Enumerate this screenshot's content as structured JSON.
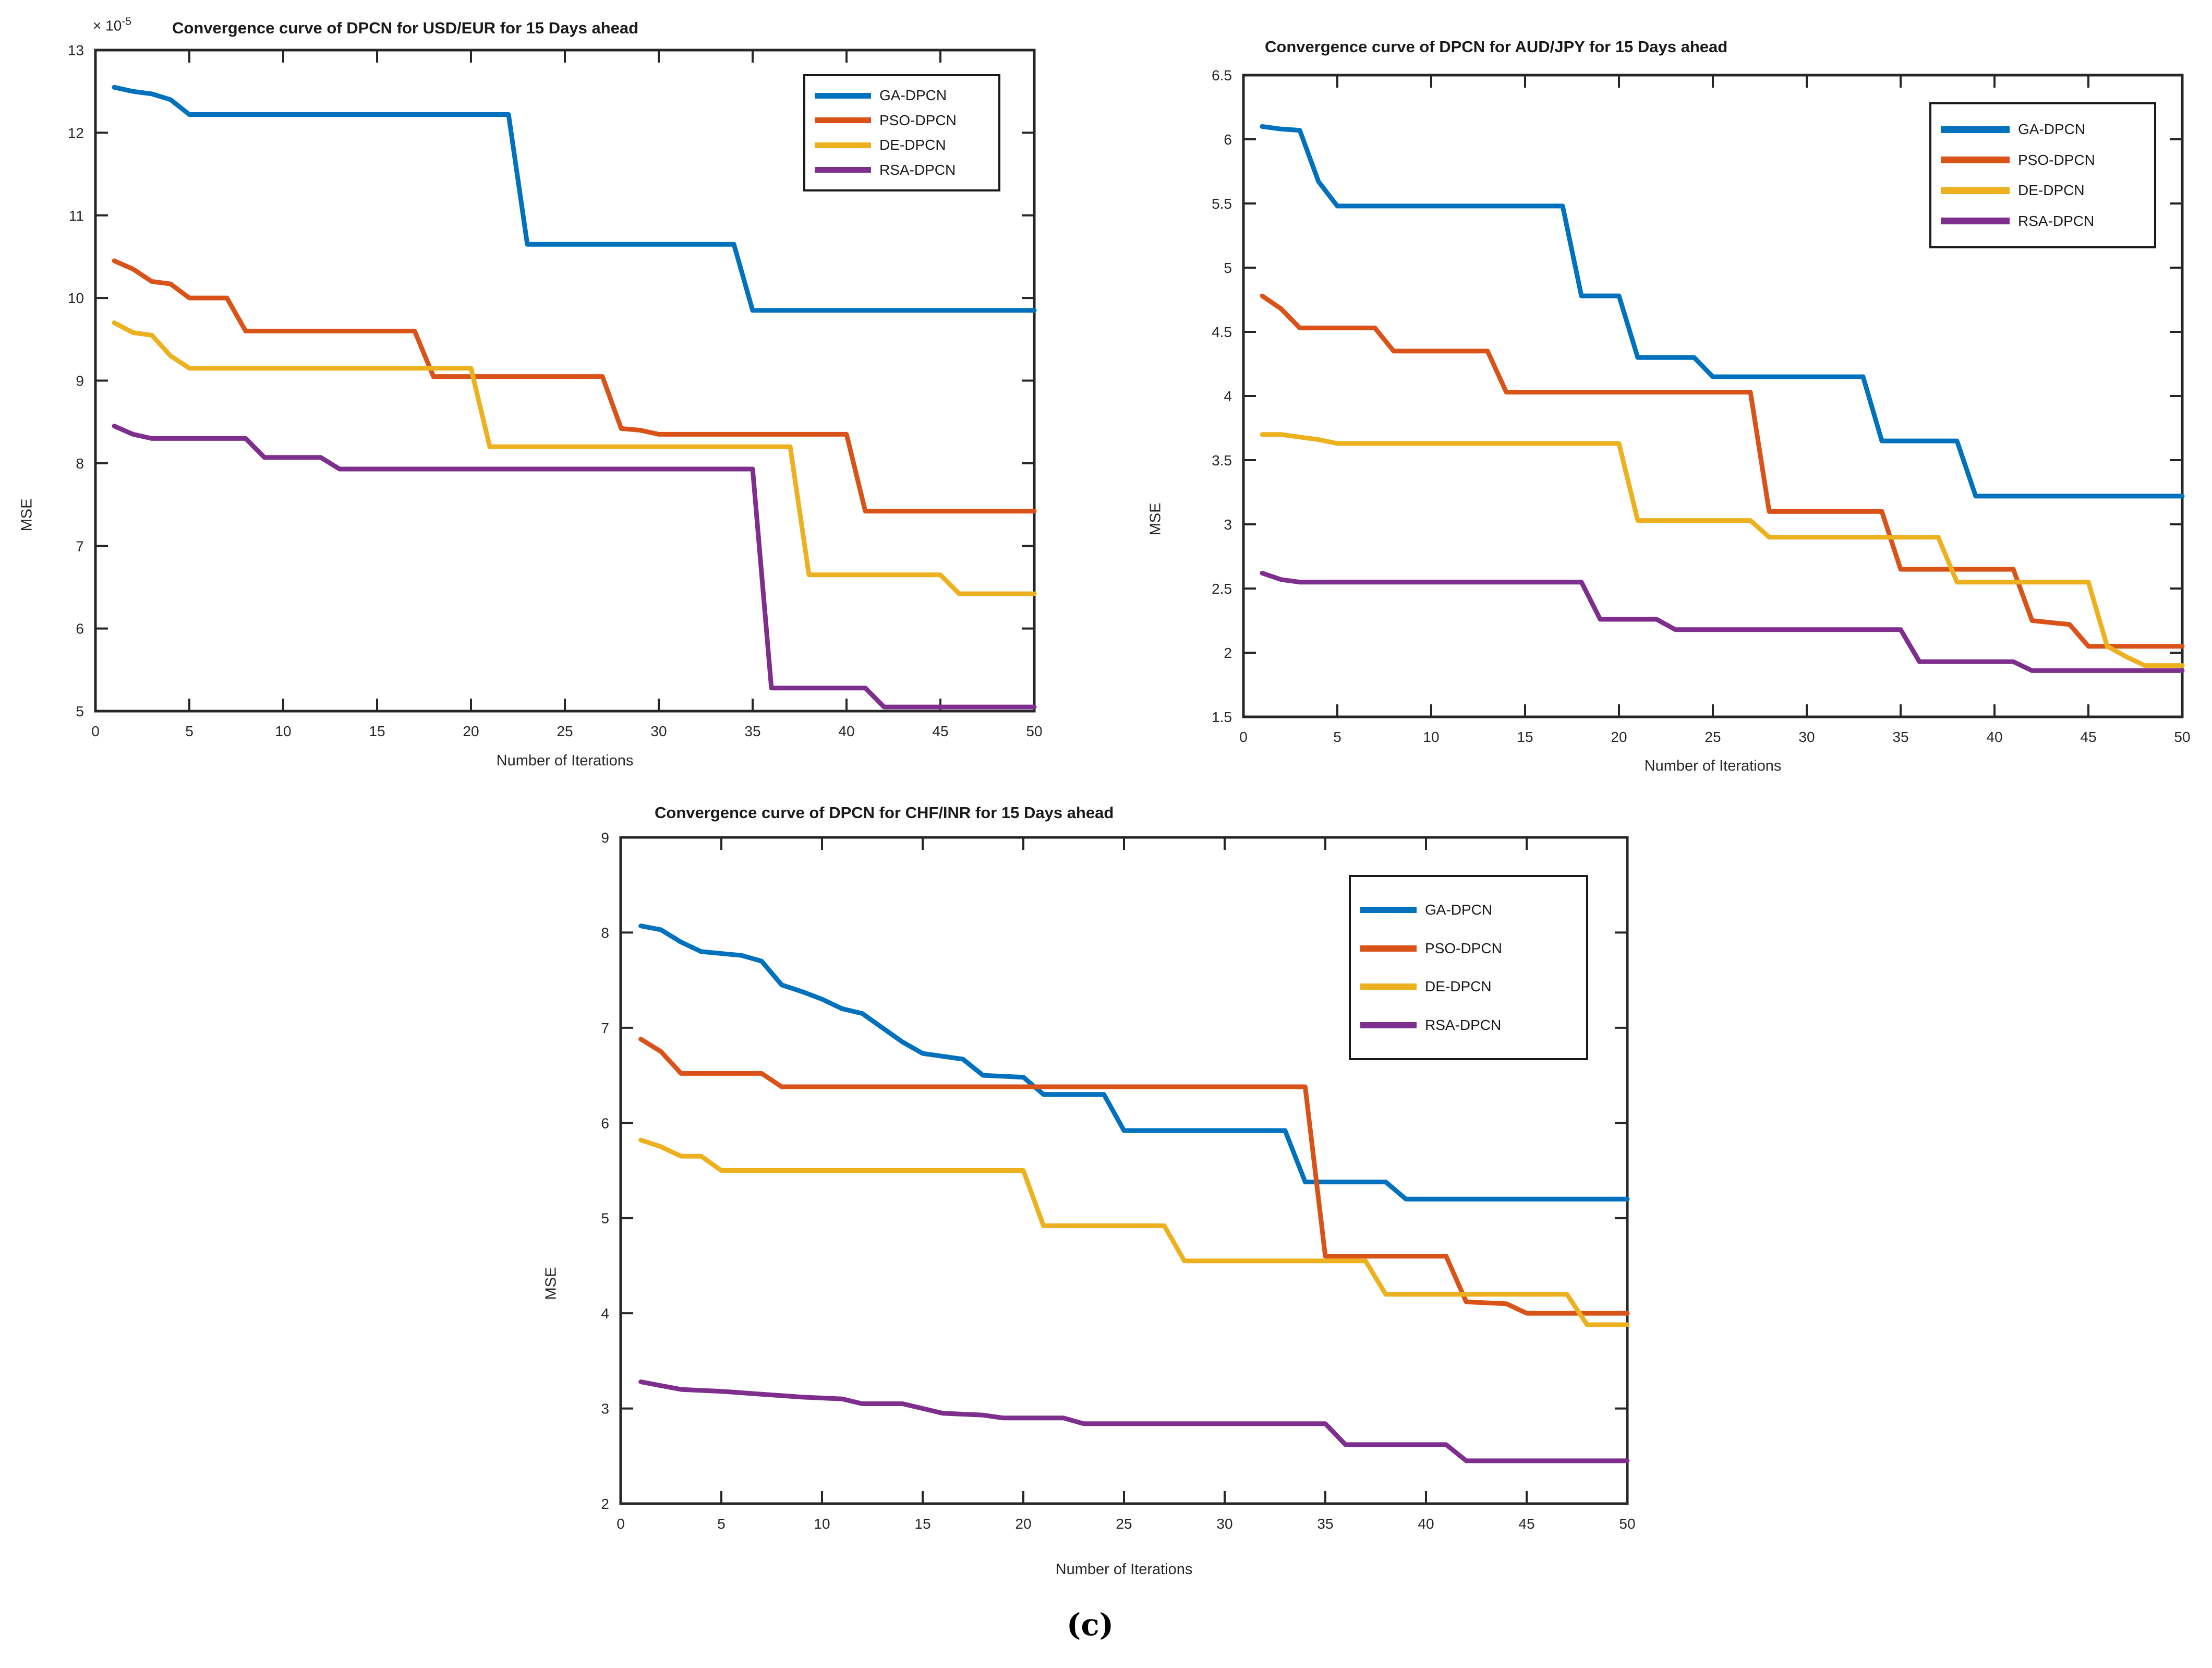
{
  "figure": {
    "caption": "(c)",
    "background": "#ffffff",
    "axis_color": "#262626"
  },
  "chart_data": [
    {
      "id": "usd-eur",
      "type": "line",
      "title": "Convergence curve of DPCN for USD/EUR for 15 Days ahead",
      "xlabel": "Number of Iterations",
      "ylabel": "MSE",
      "y_exponent_prefix": "× 10",
      "y_exponent": "-5",
      "xlim": [
        0,
        50
      ],
      "ylim": [
        5,
        13
      ],
      "xticks": [
        "0",
        "5",
        "10",
        "15",
        "20",
        "25",
        "30",
        "35",
        "40",
        "45",
        "50"
      ],
      "yticks": [
        "5",
        "6",
        "7",
        "8",
        "9",
        "10",
        "11",
        "12",
        "13"
      ],
      "grid": false,
      "legend_position": "top-right",
      "series": [
        {
          "name": "GA-DPCN",
          "color": "#0072BD",
          "points": [
            [
              1,
              12.55
            ],
            [
              2,
              12.5
            ],
            [
              3,
              12.47
            ],
            [
              4,
              12.4
            ],
            [
              5,
              12.22
            ],
            [
              22,
              12.22
            ],
            [
              23,
              10.65
            ],
            [
              34,
              10.65
            ],
            [
              35,
              9.85
            ],
            [
              50,
              9.85
            ]
          ]
        },
        {
          "name": "PSO-DPCN",
          "color": "#D95319",
          "points": [
            [
              1,
              10.45
            ],
            [
              2,
              10.35
            ],
            [
              3,
              10.2
            ],
            [
              4,
              10.17
            ],
            [
              5,
              10.0
            ],
            [
              7,
              10.0
            ],
            [
              8,
              9.6
            ],
            [
              17,
              9.6
            ],
            [
              18,
              9.05
            ],
            [
              27,
              9.05
            ],
            [
              28,
              8.42
            ],
            [
              29,
              8.4
            ],
            [
              30,
              8.35
            ],
            [
              40,
              8.35
            ],
            [
              41,
              7.42
            ],
            [
              50,
              7.42
            ]
          ]
        },
        {
          "name": "DE-DPCN",
          "color": "#EDB120",
          "points": [
            [
              1,
              9.7
            ],
            [
              2,
              9.58
            ],
            [
              3,
              9.55
            ],
            [
              4,
              9.3
            ],
            [
              5,
              9.15
            ],
            [
              20,
              9.15
            ],
            [
              21,
              8.2
            ],
            [
              37,
              8.2
            ],
            [
              38,
              6.65
            ],
            [
              45,
              6.65
            ],
            [
              46,
              6.42
            ],
            [
              50,
              6.42
            ]
          ]
        },
        {
          "name": "RSA-DPCN",
          "color": "#7E2F8E",
          "points": [
            [
              1,
              8.45
            ],
            [
              2,
              8.35
            ],
            [
              3,
              8.3
            ],
            [
              8,
              8.3
            ],
            [
              9,
              8.07
            ],
            [
              12,
              8.07
            ],
            [
              13,
              7.93
            ],
            [
              35,
              7.93
            ],
            [
              36,
              5.28
            ],
            [
              41,
              5.28
            ],
            [
              42,
              5.05
            ],
            [
              50,
              5.05
            ]
          ]
        }
      ]
    },
    {
      "id": "aud-jpy",
      "type": "line",
      "title": "Convergence curve of DPCN for AUD/JPY for 15 Days ahead",
      "xlabel": "Number of Iterations",
      "ylabel": "MSE",
      "xlim": [
        0,
        50
      ],
      "ylim": [
        1.5,
        6.5
      ],
      "xticks": [
        "0",
        "5",
        "10",
        "15",
        "20",
        "25",
        "30",
        "35",
        "40",
        "45",
        "50"
      ],
      "yticks": [
        "1.5",
        "2",
        "2.5",
        "3",
        "3.5",
        "4",
        "4.5",
        "5",
        "5.5",
        "6",
        "6.5"
      ],
      "grid": false,
      "legend_position": "top-right",
      "series": [
        {
          "name": "GA-DPCN",
          "color": "#0072BD",
          "points": [
            [
              1,
              6.1
            ],
            [
              2,
              6.08
            ],
            [
              3,
              6.07
            ],
            [
              4,
              5.67
            ],
            [
              5,
              5.48
            ],
            [
              17,
              5.48
            ],
            [
              18,
              4.78
            ],
            [
              20,
              4.78
            ],
            [
              21,
              4.3
            ],
            [
              24,
              4.3
            ],
            [
              25,
              4.15
            ],
            [
              33,
              4.15
            ],
            [
              34,
              3.65
            ],
            [
              38,
              3.65
            ],
            [
              39,
              3.22
            ],
            [
              50,
              3.22
            ]
          ]
        },
        {
          "name": "PSO-DPCN",
          "color": "#D95319",
          "points": [
            [
              1,
              4.78
            ],
            [
              2,
              4.68
            ],
            [
              3,
              4.53
            ],
            [
              7,
              4.53
            ],
            [
              8,
              4.35
            ],
            [
              13,
              4.35
            ],
            [
              14,
              4.03
            ],
            [
              27,
              4.03
            ],
            [
              28,
              3.1
            ],
            [
              34,
              3.1
            ],
            [
              35,
              2.65
            ],
            [
              41,
              2.65
            ],
            [
              42,
              2.25
            ],
            [
              44,
              2.22
            ],
            [
              45,
              2.05
            ],
            [
              50,
              2.05
            ]
          ]
        },
        {
          "name": "DE-DPCN",
          "color": "#EDB120",
          "points": [
            [
              1,
              3.7
            ],
            [
              2,
              3.7
            ],
            [
              3,
              3.68
            ],
            [
              4,
              3.66
            ],
            [
              5,
              3.63
            ],
            [
              20,
              3.63
            ],
            [
              21,
              3.03
            ],
            [
              27,
              3.03
            ],
            [
              28,
              2.9
            ],
            [
              37,
              2.9
            ],
            [
              38,
              2.55
            ],
            [
              45,
              2.55
            ],
            [
              46,
              2.05
            ],
            [
              47,
              1.97
            ],
            [
              48,
              1.9
            ],
            [
              50,
              1.9
            ]
          ]
        },
        {
          "name": "RSA-DPCN",
          "color": "#7E2F8E",
          "points": [
            [
              1,
              2.62
            ],
            [
              2,
              2.57
            ],
            [
              3,
              2.55
            ],
            [
              18,
              2.55
            ],
            [
              19,
              2.26
            ],
            [
              22,
              2.26
            ],
            [
              23,
              2.18
            ],
            [
              35,
              2.18
            ],
            [
              36,
              1.93
            ],
            [
              41,
              1.93
            ],
            [
              42,
              1.86
            ],
            [
              50,
              1.86
            ]
          ]
        }
      ]
    },
    {
      "id": "chf-inr",
      "type": "line",
      "title": "Convergence curve of DPCN for CHF/INR for 15 Days ahead",
      "xlabel": "Number of Iterations",
      "ylabel": "MSE",
      "xlim": [
        0,
        50
      ],
      "ylim": [
        2,
        9
      ],
      "xticks": [
        "0",
        "5",
        "10",
        "15",
        "20",
        "25",
        "30",
        "35",
        "40",
        "45",
        "50"
      ],
      "yticks": [
        "2",
        "3",
        "4",
        "5",
        "6",
        "7",
        "8",
        "9"
      ],
      "grid": false,
      "legend_position": "top-right",
      "series": [
        {
          "name": "GA-DPCN",
          "color": "#0072BD",
          "points": [
            [
              1,
              8.07
            ],
            [
              2,
              8.03
            ],
            [
              3,
              7.9
            ],
            [
              4,
              7.8
            ],
            [
              6,
              7.76
            ],
            [
              7,
              7.7
            ],
            [
              8,
              7.45
            ],
            [
              9,
              7.38
            ],
            [
              10,
              7.3
            ],
            [
              11,
              7.2
            ],
            [
              12,
              7.15
            ],
            [
              13,
              7.0
            ],
            [
              14,
              6.85
            ],
            [
              15,
              6.73
            ],
            [
              17,
              6.67
            ],
            [
              18,
              6.5
            ],
            [
              20,
              6.48
            ],
            [
              21,
              6.3
            ],
            [
              24,
              6.3
            ],
            [
              25,
              5.92
            ],
            [
              33,
              5.92
            ],
            [
              34,
              5.38
            ],
            [
              38,
              5.38
            ],
            [
              39,
              5.2
            ],
            [
              50,
              5.2
            ]
          ]
        },
        {
          "name": "PSO-DPCN",
          "color": "#D95319",
          "points": [
            [
              1,
              6.88
            ],
            [
              2,
              6.75
            ],
            [
              3,
              6.52
            ],
            [
              7,
              6.52
            ],
            [
              8,
              6.38
            ],
            [
              34,
              6.38
            ],
            [
              35,
              4.6
            ],
            [
              41,
              4.6
            ],
            [
              42,
              4.12
            ],
            [
              44,
              4.1
            ],
            [
              45,
              4.0
            ],
            [
              50,
              4.0
            ]
          ]
        },
        {
          "name": "DE-DPCN",
          "color": "#EDB120",
          "points": [
            [
              1,
              5.82
            ],
            [
              2,
              5.75
            ],
            [
              3,
              5.65
            ],
            [
              4,
              5.65
            ],
            [
              5,
              5.5
            ],
            [
              20,
              5.5
            ],
            [
              21,
              4.92
            ],
            [
              27,
              4.92
            ],
            [
              28,
              4.55
            ],
            [
              37,
              4.55
            ],
            [
              38,
              4.2
            ],
            [
              47,
              4.2
            ],
            [
              48,
              3.88
            ],
            [
              50,
              3.88
            ]
          ]
        },
        {
          "name": "RSA-DPCN",
          "color": "#7E2F8E",
          "points": [
            [
              1,
              3.28
            ],
            [
              2,
              3.24
            ],
            [
              3,
              3.2
            ],
            [
              5,
              3.18
            ],
            [
              7,
              3.15
            ],
            [
              9,
              3.12
            ],
            [
              11,
              3.1
            ],
            [
              12,
              3.05
            ],
            [
              14,
              3.05
            ],
            [
              15,
              3.0
            ],
            [
              16,
              2.95
            ],
            [
              18,
              2.93
            ],
            [
              19,
              2.9
            ],
            [
              22,
              2.9
            ],
            [
              23,
              2.84
            ],
            [
              35,
              2.84
            ],
            [
              36,
              2.62
            ],
            [
              41,
              2.62
            ],
            [
              42,
              2.45
            ],
            [
              50,
              2.45
            ]
          ]
        }
      ]
    }
  ]
}
